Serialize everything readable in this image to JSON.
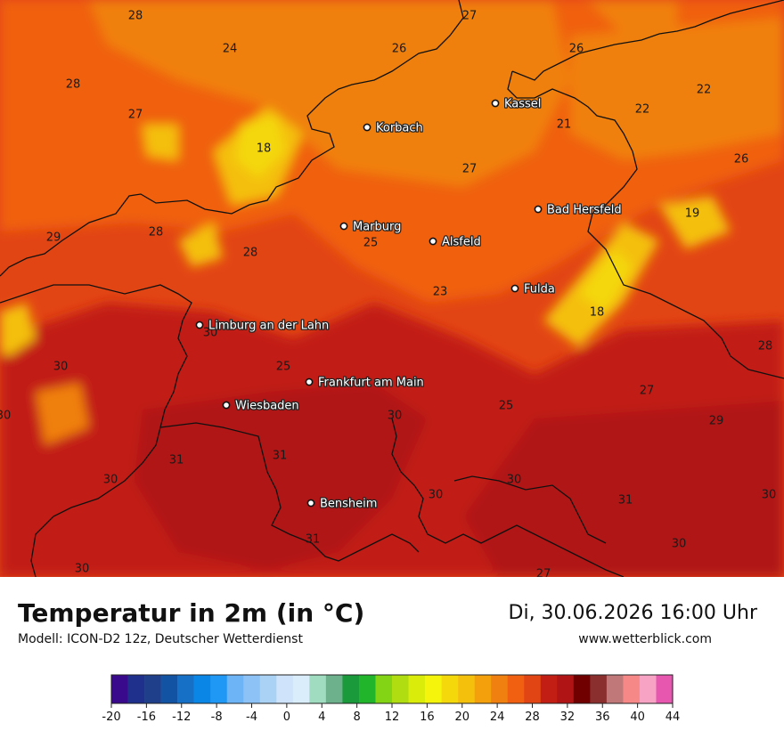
{
  "header": {
    "title": "Temperatur in 2m (in °C)",
    "model": "Modell: ICON-D2 12z, Deutscher Wetterdienst",
    "datetime": "Di, 30.06.2026 16:00 Uhr",
    "website": "www.wetterblick.com"
  },
  "cities": [
    {
      "name": "Kassel"
    },
    {
      "name": "Korbach"
    },
    {
      "name": "Bad Hersfeld"
    },
    {
      "name": "Marburg"
    },
    {
      "name": "Alsfeld"
    },
    {
      "name": "Fulda"
    },
    {
      "name": "Limburg an der Lahn"
    },
    {
      "name": "Frankfurt am Main"
    },
    {
      "name": "Wiesbaden"
    },
    {
      "name": "Bensheim"
    }
  ],
  "values": [
    "28",
    "27",
    "24",
    "26",
    "26",
    "28",
    "27",
    "18",
    "21",
    "22",
    "22",
    "26",
    "27",
    "19",
    "29",
    "28",
    "28",
    "25",
    "23",
    "18",
    "25",
    "30",
    "28",
    "27",
    "25",
    "30",
    "29",
    "30",
    "31",
    "31",
    "30",
    "30",
    "30",
    "31",
    "30",
    "31",
    "30",
    "30",
    "27",
    "30"
  ],
  "color_scale": {
    "ticks": [
      "-20",
      "-16",
      "-12",
      "-8",
      "-4",
      "0",
      "4",
      "8",
      "12",
      "16",
      "20",
      "24",
      "28",
      "32",
      "36",
      "40",
      "44"
    ],
    "colors": [
      "#3a0a8c",
      "#1f2f8c",
      "#203f8a",
      "#1253a3",
      "#1670c6",
      "#0a86e6",
      "#1e97f5",
      "#6cb4f5",
      "#8cc2f5",
      "#aad2f5",
      "#cfe3fa",
      "#d9eefa",
      "#9fdcc0",
      "#6cb08c",
      "#1a9a3a",
      "#20b52a",
      "#84d416",
      "#b0dc12",
      "#d9ec0a",
      "#f4f40c",
      "#f4d80c",
      "#f4c00c",
      "#f4a00c",
      "#f08010",
      "#f06010",
      "#e24514",
      "#c21e14",
      "#b01414",
      "#700000",
      "#8a2e2e",
      "#c07878",
      "#f78888",
      "#f7a4c4",
      "#e757b0"
    ]
  }
}
